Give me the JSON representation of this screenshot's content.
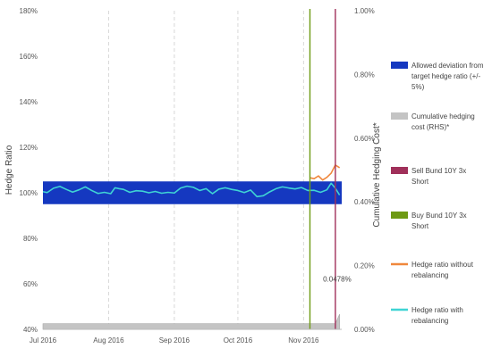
{
  "chart_data": {
    "type": "line",
    "title": "",
    "ylabel": "Hedge Ratio",
    "y2label": "Cumulative Hedging Cost*",
    "ylim": [
      40,
      180
    ],
    "y2lim": [
      0,
      1.0
    ],
    "y_ticks": [
      "40%",
      "60%",
      "80%",
      "100%",
      "120%",
      "140%",
      "160%",
      "180%"
    ],
    "y2_ticks": [
      "0.00%",
      "0.20%",
      "0.40%",
      "0.60%",
      "0.80%",
      "1.00%"
    ],
    "x_ticks": [
      "Jul 2016",
      "Aug 2016",
      "Sep 2016",
      "Oct 2016",
      "Nov 2016"
    ],
    "x_tick_dates": [
      "2016-07-01",
      "2016-08-01",
      "2016-09-01",
      "2016-10-01",
      "2016-11-01"
    ],
    "x_range": [
      "2016-07-01",
      "2016-11-19"
    ],
    "grid": "vertical dashed",
    "legend_position": "right",
    "band": {
      "name": "Allowed deviation from target hedge ratio (+/- 5%)",
      "low": 95,
      "high": 105,
      "color": "#1538c0"
    },
    "vlines": [
      {
        "name": "Buy Bund 10Y 3x Short",
        "date": "2016-11-04",
        "color": "#6e9a14"
      },
      {
        "name": "Sell Bund 10Y 3x Short",
        "date": "2016-11-16",
        "color": "#a0305a"
      }
    ],
    "series": [
      {
        "name": "Hedge ratio with rebalancing",
        "color": "#3fd4d4",
        "axis": "left",
        "x": [
          "2016-07-01",
          "2016-07-03",
          "2016-07-06",
          "2016-07-09",
          "2016-07-12",
          "2016-07-15",
          "2016-07-18",
          "2016-07-21",
          "2016-07-24",
          "2016-07-27",
          "2016-07-30",
          "2016-08-02",
          "2016-08-04",
          "2016-08-06",
          "2016-08-08",
          "2016-08-11",
          "2016-08-14",
          "2016-08-17",
          "2016-08-20",
          "2016-08-23",
          "2016-08-26",
          "2016-08-29",
          "2016-09-01",
          "2016-09-04",
          "2016-09-07",
          "2016-09-10",
          "2016-09-13",
          "2016-09-16",
          "2016-09-19",
          "2016-09-22",
          "2016-09-25",
          "2016-09-28",
          "2016-10-01",
          "2016-10-04",
          "2016-10-07",
          "2016-10-10",
          "2016-10-13",
          "2016-10-16",
          "2016-10-19",
          "2016-10-22",
          "2016-10-25",
          "2016-10-28",
          "2016-10-31",
          "2016-11-03",
          "2016-11-06",
          "2016-11-09",
          "2016-11-12",
          "2016-11-14",
          "2016-11-16",
          "2016-11-18"
        ],
        "values": [
          100.5,
          100.1,
          102.0,
          102.8,
          101.5,
          100.3,
          101.3,
          102.6,
          101.0,
          99.7,
          100.2,
          99.6,
          102.2,
          101.8,
          101.5,
          100.2,
          100.9,
          100.7,
          100.0,
          100.6,
          99.8,
          100.2,
          99.9,
          102.1,
          102.9,
          102.4,
          101.0,
          101.8,
          99.6,
          101.6,
          102.2,
          101.5,
          101.0,
          100.1,
          101.2,
          98.3,
          98.7,
          100.4,
          101.8,
          102.6,
          102.1,
          101.7,
          102.3,
          101.0,
          101.1,
          100.2,
          101.3,
          104.2,
          102.0,
          99.0
        ]
      },
      {
        "name": "Hedge ratio without rebalancing",
        "color": "#f0873c",
        "axis": "left",
        "x": [
          "2016-11-04",
          "2016-11-06",
          "2016-11-08",
          "2016-11-10",
          "2016-11-12",
          "2016-11-14",
          "2016-11-16",
          "2016-11-18"
        ],
        "values": [
          106.6,
          106.2,
          107.4,
          105.6,
          106.8,
          108.6,
          112.2,
          111.0
        ]
      },
      {
        "name": "Cumulative hedging cost (RHS)*",
        "color": "#c4c4c4",
        "axis": "right",
        "type": "area",
        "x": [
          "2016-07-01",
          "2016-11-16",
          "2016-11-18"
        ],
        "values": [
          0.0178,
          0.0178,
          0.0478
        ]
      }
    ],
    "annotations": [
      {
        "text": "0.0478%",
        "x": "2016-11-16",
        "y2": 0.15
      }
    ],
    "legend": [
      {
        "label": "Allowed deviation from target hedge ratio (+/- 5%)",
        "color": "#1538c0",
        "kind": "band"
      },
      {
        "label": "Cumulative hedging cost (RHS)*",
        "color": "#c4c4c4",
        "kind": "band"
      },
      {
        "label": "Sell Bund 10Y 3x Short",
        "color": "#a0305a",
        "kind": "band"
      },
      {
        "label": "Buy Bund 10Y 3x Short",
        "color": "#6e9a14",
        "kind": "band"
      },
      {
        "label": "Hedge ratio without rebalancing",
        "color": "#f0873c",
        "kind": "line"
      },
      {
        "label": "Hedge ratio with rebalancing",
        "color": "#3fd4d4",
        "kind": "line"
      }
    ]
  }
}
